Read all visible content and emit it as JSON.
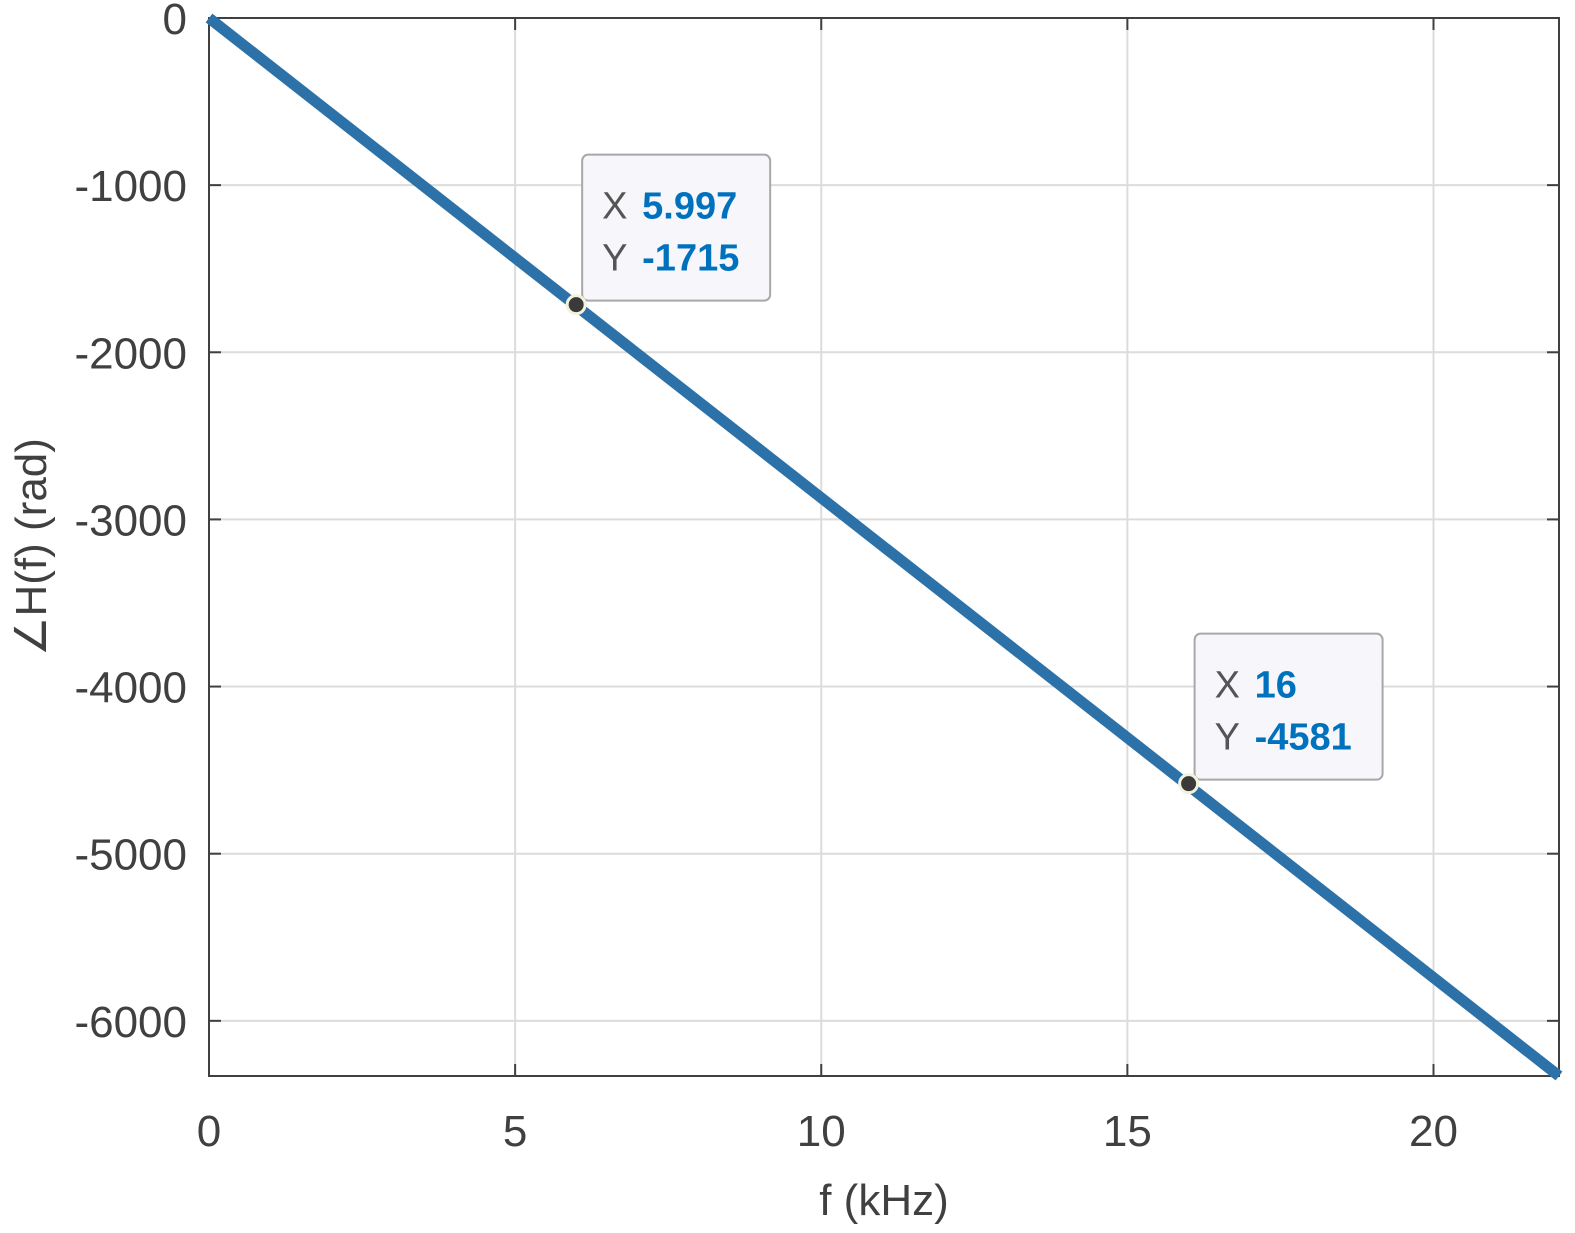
{
  "chart_data": {
    "type": "line",
    "xlabel": "f (kHz)",
    "ylabel": "∠H(f)  (rad)",
    "xlim": [
      0,
      22.05
    ],
    "ylim": [
      -6330,
      0
    ],
    "xticks": [
      0,
      5,
      10,
      15,
      20
    ],
    "yticks": [
      0,
      -1000,
      -2000,
      -3000,
      -4000,
      -5000,
      -6000
    ],
    "grid": true,
    "series": [
      {
        "x": [
          0,
          22.05
        ],
        "y": [
          0,
          -6330
        ]
      }
    ],
    "datatips": [
      {
        "x_key": "X",
        "y_key": "Y",
        "x_value": "5.997",
        "y_value": "-1715",
        "x": 5.997,
        "y": -1715
      },
      {
        "x_key": "X",
        "y_key": "Y",
        "x_value": "16",
        "y_value": "-4581",
        "x": 16,
        "y": -4581
      }
    ],
    "colors": {
      "line": "#2c72a8",
      "axes": "#404040",
      "grid": "#dcdcdc",
      "tip_value": "#0072bd",
      "tip_bg": "#f6f6fb",
      "tip_border": "#a8a8a8",
      "marker": "#3a3a3a"
    }
  }
}
